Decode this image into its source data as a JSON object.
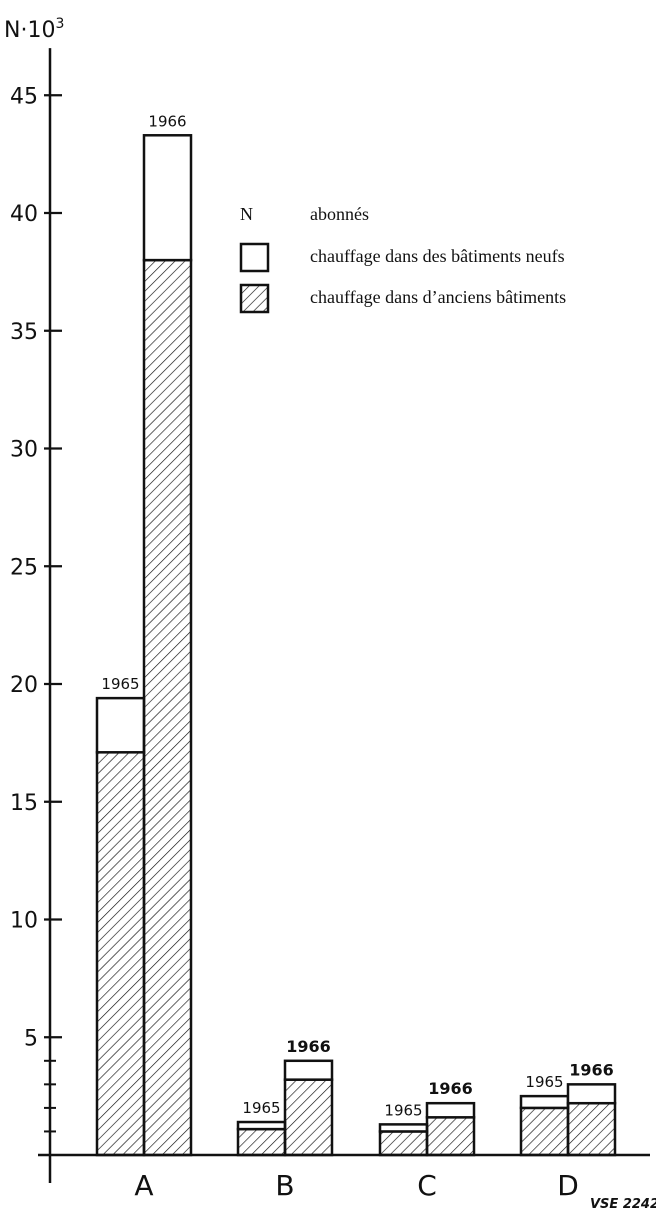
{
  "chart_data": {
    "type": "bar",
    "stacked": true,
    "ylabel": "N·10",
    "ylabel_exponent": "3",
    "ylim": [
      0,
      47
    ],
    "yticks": [
      5,
      10,
      15,
      20,
      25,
      30,
      35,
      40,
      45
    ],
    "yticks_labels": [
      "5",
      "10",
      "15",
      "20",
      "25",
      "30",
      "35",
      "40",
      "45"
    ],
    "categories": [
      "A",
      "B",
      "C",
      "D"
    ],
    "years": [
      "1965",
      "1966"
    ],
    "series": [
      {
        "name": "chauffage dans d’anciens bâtiments",
        "pattern": "hatched",
        "values": {
          "A": {
            "1965": 17.1,
            "1966": 38.0
          },
          "B": {
            "1965": 1.1,
            "1966": 3.2
          },
          "C": {
            "1965": 1.0,
            "1966": 1.6
          },
          "D": {
            "1965": 2.0,
            "1966": 2.2
          }
        }
      },
      {
        "name": "chauffage dans des bâtiments neufs",
        "pattern": "empty",
        "values": {
          "A": {
            "1965": 2.3,
            "1966": 5.3
          },
          "B": {
            "1965": 0.3,
            "1966": 0.8
          },
          "C": {
            "1965": 0.3,
            "1966": 0.6
          },
          "D": {
            "1965": 0.5,
            "1966": 0.8
          }
        }
      }
    ],
    "legend": {
      "placement": "top-right",
      "n_symbol": "N",
      "n_label": "abonnés",
      "entries": [
        "chauffage dans des bâtiments neufs",
        "chauffage dans d’anciens bâtiments"
      ]
    },
    "grid": false,
    "note": "VSE 2242"
  }
}
